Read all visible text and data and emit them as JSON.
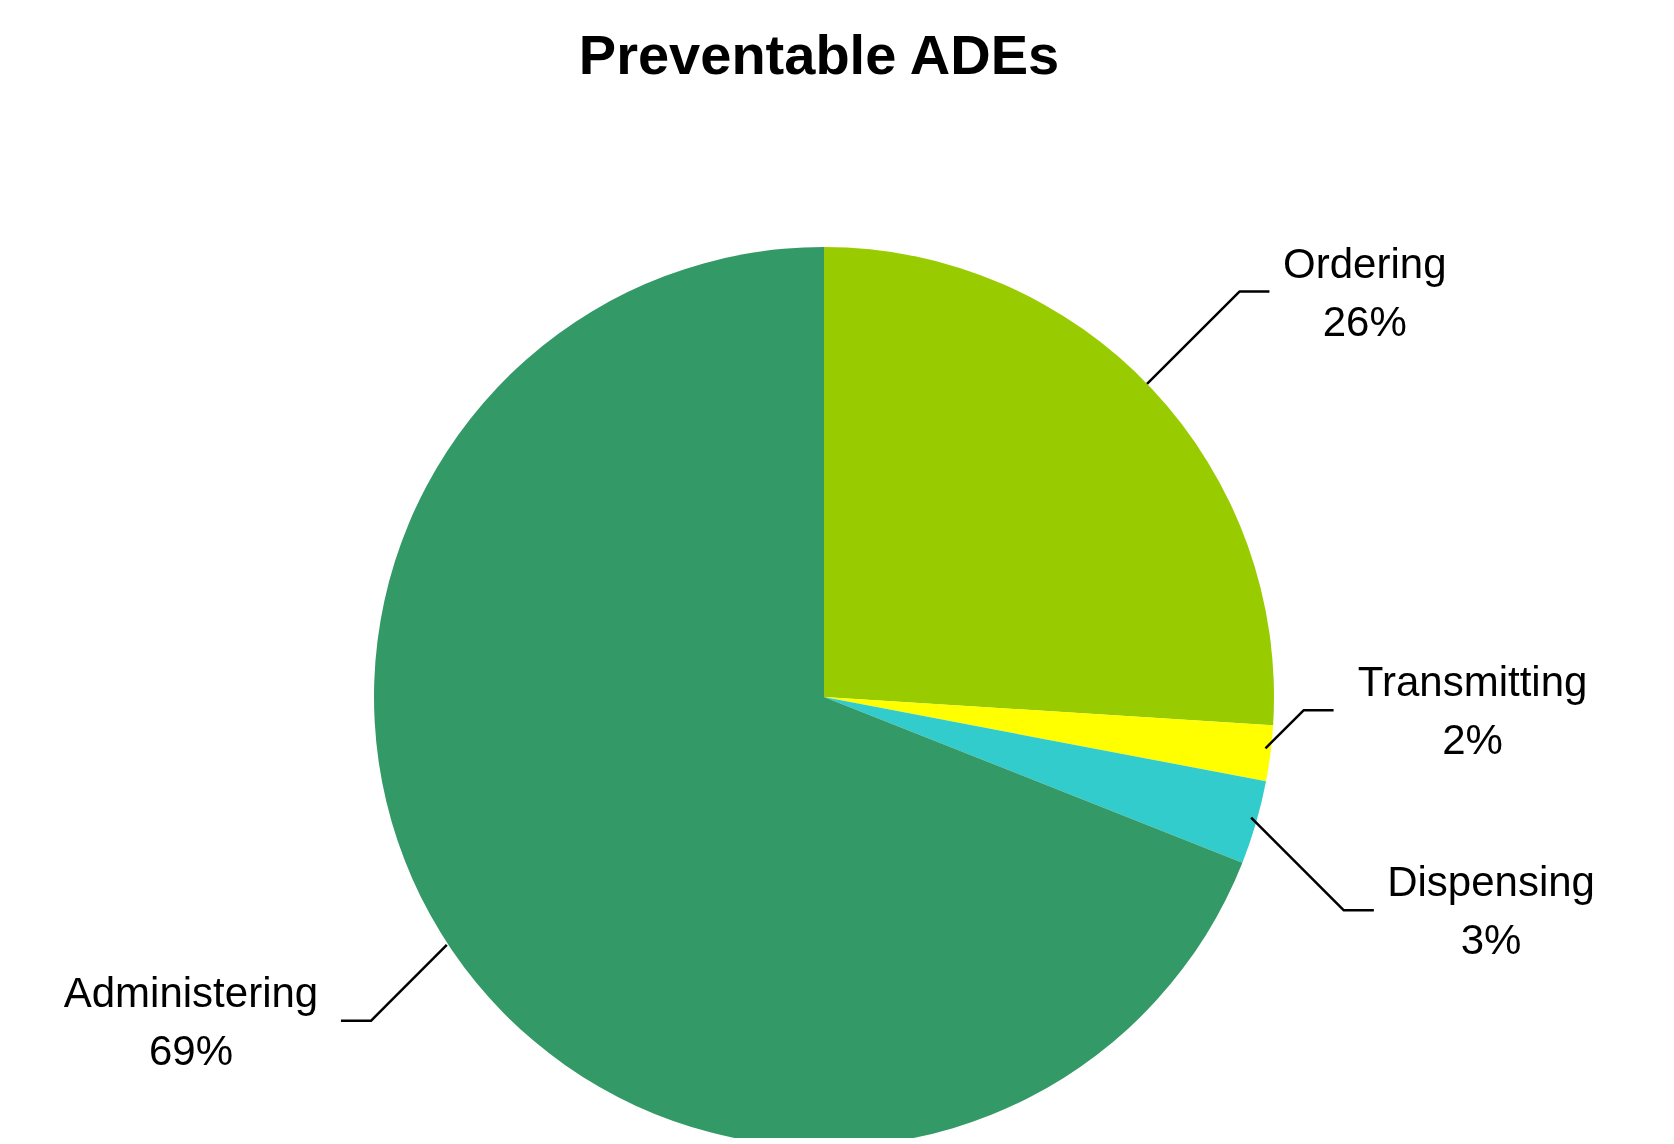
{
  "chart_data": {
    "type": "pie",
    "title": "Preventable ADEs",
    "categories": [
      "Ordering",
      "Transmitting",
      "Dispensing",
      "Administering"
    ],
    "values": [
      26,
      2,
      3,
      69
    ],
    "value_labels": [
      "26%",
      "2%",
      "3%",
      "69%"
    ],
    "colors": [
      "#99cc00",
      "#ffff00",
      "#33cccc",
      "#339966"
    ],
    "legend": false
  }
}
